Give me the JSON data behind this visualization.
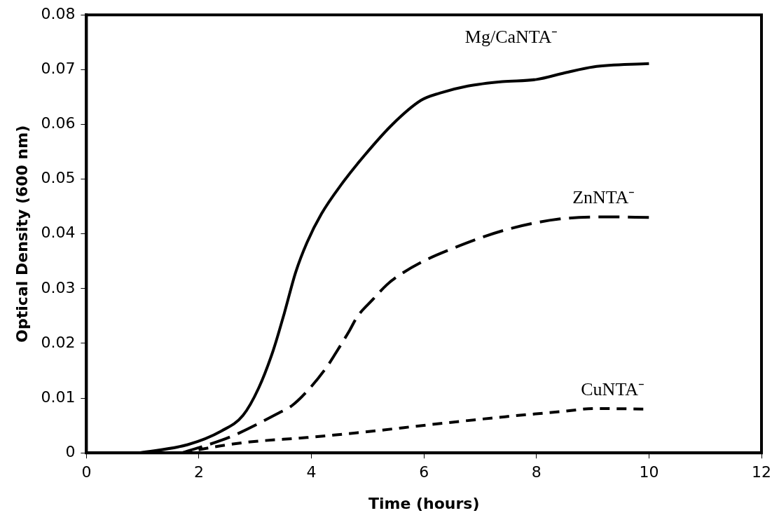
{
  "chart_data": {
    "type": "line",
    "xlabel": "Time (hours)",
    "ylabel": "Optical Density (600 nm)",
    "xlim": [
      0,
      12
    ],
    "xticks": [
      0,
      2,
      4,
      6,
      8,
      10,
      12
    ],
    "ylim": [
      0,
      0.08
    ],
    "yticks": [
      0,
      0.01,
      0.02,
      0.03,
      0.04,
      0.05,
      0.06,
      0.07,
      0.08
    ],
    "grid": false,
    "legend": false,
    "marker": "none",
    "series": [
      {
        "name": "Mg/CaNTA⁻",
        "color": "#000000",
        "line_style": "solid",
        "x": [
          0.94,
          1.8,
          2.4,
          2.78,
          3.06,
          3.32,
          3.52,
          3.72,
          3.92,
          4.18,
          4.53,
          4.94,
          5.44,
          5.95,
          6.28,
          6.78,
          7.39,
          8,
          8.5,
          9.01,
          10
        ],
        "values": [
          0,
          0.0015,
          0.004,
          0.0068,
          0.0118,
          0.0187,
          0.0256,
          0.033,
          0.0384,
          0.0437,
          0.049,
          0.0543,
          0.06,
          0.0644,
          0.0657,
          0.067,
          0.0678,
          0.0682,
          0.0694,
          0.0705,
          0.0711
        ]
      },
      {
        "name": "ZnNTA⁻",
        "color": "#000000",
        "line_style": "dashed",
        "x": [
          1.7,
          2.4,
          2.71,
          3.42,
          3.65,
          3.97,
          4.28,
          4.43,
          4.68,
          4.81,
          5.09,
          5.34,
          5.54,
          5.97,
          6.43,
          7.44,
          8.4,
          9.27,
          10
        ],
        "values": [
          0,
          0.0023,
          0.0036,
          0.0073,
          0.0086,
          0.0118,
          0.0158,
          0.0182,
          0.0224,
          0.0248,
          0.028,
          0.0307,
          0.0323,
          0.0349,
          0.037,
          0.0407,
          0.0427,
          0.0431,
          0.043
        ]
      },
      {
        "name": "CuNTA⁻",
        "color": "#000000",
        "line_style": "dotted",
        "x": [
          1.7,
          2.4,
          2.91,
          3.92,
          4.94,
          6.15,
          7.44,
          8.4,
          9.06,
          9.92
        ],
        "values": [
          0,
          0.0013,
          0.002,
          0.0028,
          0.0038,
          0.0052,
          0.0066,
          0.0075,
          0.0081,
          0.008
        ]
      }
    ]
  }
}
